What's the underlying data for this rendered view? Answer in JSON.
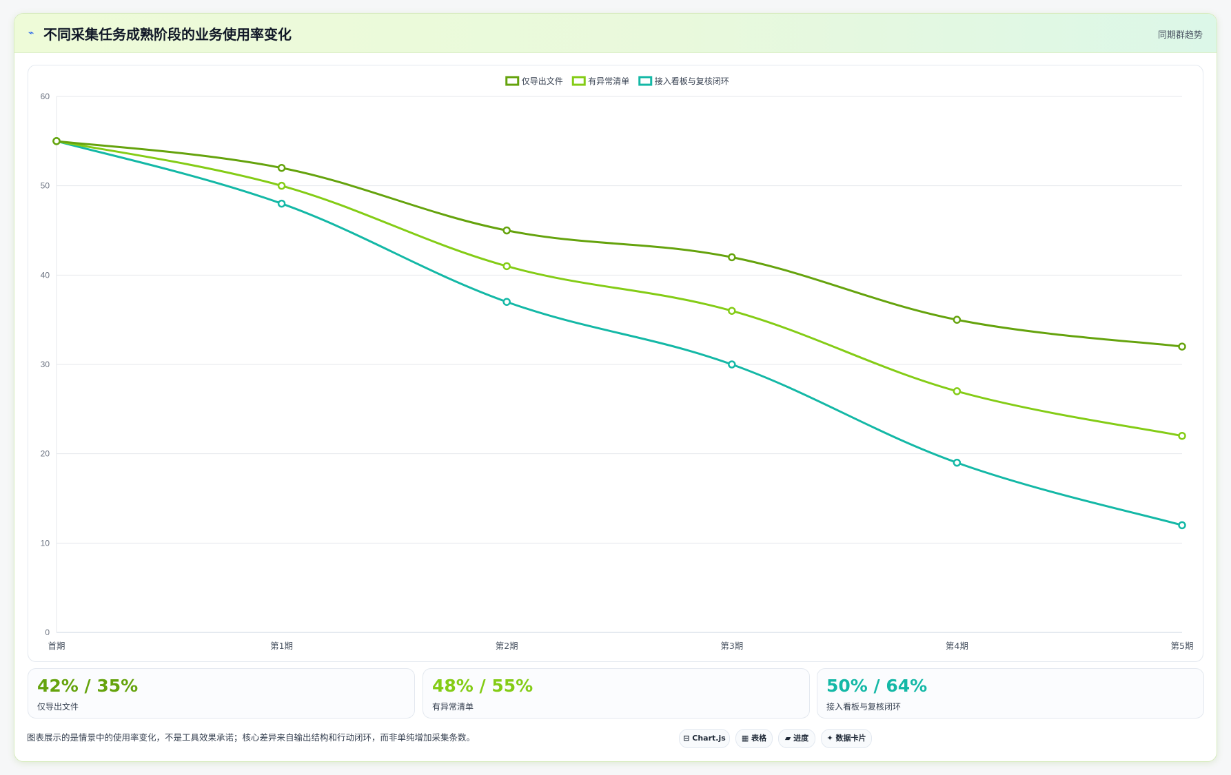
{
  "header": {
    "icon": "wave-icon",
    "title": "不同采集任务成熟阶段的业务使用率变化",
    "tag": "同期群趋势"
  },
  "chart_data": {
    "type": "line",
    "categories": [
      "首期",
      "第1期",
      "第2期",
      "第3期",
      "第4期",
      "第5期"
    ],
    "ylim": [
      0,
      60
    ],
    "yticks": [
      0,
      10,
      20,
      30,
      40,
      50,
      60
    ],
    "grid": true,
    "legend_position": "top-center",
    "series": [
      {
        "name": "仅导出文件",
        "color": "#65a30d",
        "values": [
          55,
          52,
          45,
          42,
          35,
          32
        ]
      },
      {
        "name": "有异常清单",
        "color": "#84cc16",
        "values": [
          55,
          50,
          41,
          36,
          27,
          22
        ]
      },
      {
        "name": "接入看板与复核闭环",
        "color": "#14b8a6",
        "values": [
          55,
          48,
          37,
          30,
          19,
          12
        ]
      }
    ]
  },
  "stats": [
    {
      "value": "42% / 35%",
      "label": "仅导出文件",
      "color": "#65a30d"
    },
    {
      "value": "48% / 55%",
      "label": "有异常清单",
      "color": "#84cc16"
    },
    {
      "value": "50% / 64%",
      "label": "接入看板与复核闭环",
      "color": "#14b8a6"
    }
  ],
  "note": "图表展示的是情景中的使用率变化，不是工具效果承诺；核心差异来自输出结构和行动闭环，而非单纯增加采集条数。",
  "chips": [
    {
      "icon": "chart-icon",
      "glyph": "⊟",
      "label": "Chart.js"
    },
    {
      "icon": "table-icon",
      "glyph": "▦",
      "label": "表格"
    },
    {
      "icon": "progress-icon",
      "glyph": "▰",
      "label": "进度"
    },
    {
      "icon": "card-icon",
      "glyph": "✦",
      "label": "数据卡片"
    }
  ]
}
